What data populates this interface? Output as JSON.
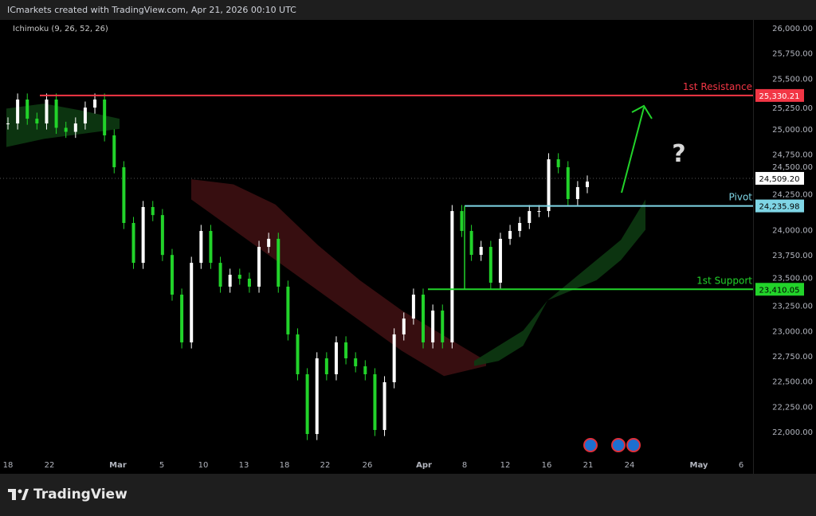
{
  "header": {
    "title": "ICmarkets created with TradingView.com, Apr 21, 2026 00:10 UTC"
  },
  "indicator": {
    "label": "Ichimoku (9, 26, 52, 26)"
  },
  "footer": {
    "logo_text": "TradingView"
  },
  "chart_data": {
    "type": "candlestick",
    "ylim": [
      21900,
      26050
    ],
    "yticks": [
      22000,
      22250,
      22500,
      22750,
      23000,
      23250,
      23500,
      23750,
      24000,
      24250,
      24500,
      24750,
      25000,
      25250,
      25500,
      25750,
      26000
    ],
    "ytick_labels": [
      "22,000.00",
      "22,250.00",
      "22,500.00",
      "22,750.00",
      "23,000.00",
      "23,250.00",
      "23,500.00",
      "23,750.00",
      "24,000.00",
      "24,250.00",
      "24,500.00",
      "24,750.00",
      "25,000.00",
      "25,250.00",
      "25,500.00",
      "25,750.00",
      "26,000.00"
    ],
    "xticks": [
      "18",
      "22",
      "Mar",
      "5",
      "10",
      "13",
      "18",
      "22",
      "26",
      "Apr",
      "8",
      "12",
      "16",
      "21",
      "24",
      "May",
      "6"
    ],
    "closes": [
      25053,
      25290,
      25100,
      25053,
      25290,
      25010,
      24970,
      25053,
      25210,
      25290,
      24935,
      24619,
      24067,
      23672,
      24225,
      24145,
      23750,
      23357,
      22884,
      23672,
      23988,
      23672,
      23436,
      23554,
      23515,
      23436,
      23830,
      23910,
      23436,
      22963,
      22568,
      21976,
      22726,
      22568,
      22884,
      22726,
      22647,
      22568,
      22016,
      22489,
      22963,
      23120,
      23357,
      22884,
      23199,
      22884,
      24185,
      23988,
      23751,
      23830,
      23475,
      23910,
      23988,
      24067,
      24185,
      24185,
      24698,
      24619,
      24304,
      24422,
      24477
    ],
    "cloud": {
      "segments": [
        {
          "color": "green",
          "a": [
            25200,
            25250,
            25180,
            25100
          ],
          "b": [
            24820,
            24900,
            24950,
            25000
          ]
        },
        {
          "color": "red",
          "a": [
            24500,
            24450,
            24250,
            23850,
            23500,
            23200,
            22950,
            22700
          ],
          "b": [
            24300,
            24000,
            23700,
            23400,
            23100,
            22800,
            22550,
            22650
          ]
        },
        {
          "color": "green",
          "a": [
            22700,
            22850,
            23000,
            23300,
            23500,
            23700,
            23900,
            24300
          ],
          "b": [
            22650,
            22700,
            22850,
            23300,
            23400,
            23500,
            23700,
            24000
          ]
        }
      ]
    },
    "levels": [
      {
        "name": "1st Resistance",
        "value": 25330.21,
        "label": "25,330.21",
        "color": "#f23645"
      },
      {
        "name": "Pivot",
        "value": 24235.98,
        "label": "24,235.98",
        "color": "#7fd6e6"
      },
      {
        "name": "1st Support",
        "value": 23410.05,
        "label": "23,410.05",
        "color": "#22d32a"
      }
    ],
    "last_price": {
      "value": 24509.2,
      "label": "24,509.20"
    },
    "annotation": {
      "question_mark": "?",
      "arrow_color": "#22d32a"
    },
    "colors": {
      "up": "#ffffff",
      "down": "#22d32a",
      "cloud_green": "#0d3a12",
      "cloud_red": "#3d0f12"
    }
  }
}
